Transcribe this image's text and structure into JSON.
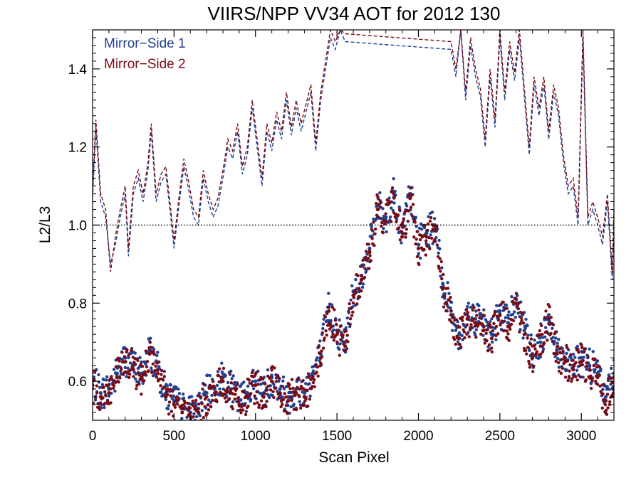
{
  "chart_data": {
    "type": "scatter",
    "title": "VIIRS/NPP VV34 AOT for 2012 130",
    "xlabel": "Scan Pixel",
    "ylabel": "L2/L3",
    "xlim": [
      0,
      3200
    ],
    "ylim": [
      0.5,
      1.5
    ],
    "x_ticks": [
      0,
      500,
      1000,
      1500,
      2000,
      2500,
      3000
    ],
    "x_tick_labels": [
      "0",
      "500",
      "1000",
      "1500",
      "2000",
      "2500",
      "3000"
    ],
    "y_ticks": [
      0.6,
      0.8,
      1.0,
      1.2,
      1.4
    ],
    "y_tick_labels": [
      "0.6",
      "0.8",
      "1.0",
      "1.2",
      "1.4"
    ],
    "reference_line": 1.0,
    "legend_position": "top-left",
    "series": [
      {
        "name": "Mirror−Side 1",
        "color": "#1f3f8f",
        "style": "points",
        "x": [
          0,
          50,
          100,
          150,
          200,
          250,
          300,
          350,
          400,
          450,
          500,
          550,
          600,
          650,
          700,
          750,
          800,
          850,
          900,
          950,
          1000,
          1050,
          1100,
          1150,
          1200,
          1250,
          1300,
          1350,
          1400,
          1450,
          1500,
          1550,
          1600,
          1650,
          1700,
          1750,
          1800,
          1850,
          1900,
          1950,
          2000,
          2050,
          2100,
          2150,
          2200,
          2250,
          2300,
          2350,
          2400,
          2450,
          2500,
          2550,
          2600,
          2650,
          2700,
          2750,
          2800,
          2850,
          2900,
          2950,
          3000,
          3050,
          3100,
          3150,
          3200
        ],
        "values": [
          0.6,
          0.57,
          0.58,
          0.62,
          0.66,
          0.64,
          0.62,
          0.68,
          0.63,
          0.57,
          0.55,
          0.53,
          0.52,
          0.53,
          0.57,
          0.58,
          0.61,
          0.58,
          0.55,
          0.57,
          0.6,
          0.57,
          0.61,
          0.58,
          0.56,
          0.58,
          0.57,
          0.62,
          0.67,
          0.79,
          0.73,
          0.7,
          0.83,
          0.87,
          0.94,
          1.05,
          1.02,
          1.08,
          0.98,
          1.08,
          0.95,
          0.98,
          1.0,
          0.85,
          0.78,
          0.72,
          0.77,
          0.76,
          0.74,
          0.72,
          0.78,
          0.75,
          0.81,
          0.73,
          0.67,
          0.7,
          0.77,
          0.68,
          0.66,
          0.64,
          0.66,
          0.64,
          0.62,
          0.56,
          0.62
        ]
      },
      {
        "name": "Mirror−Side 2",
        "color": "#7a0a14",
        "style": "points",
        "x": [
          0,
          50,
          100,
          150,
          200,
          250,
          300,
          350,
          400,
          450,
          500,
          550,
          600,
          650,
          700,
          750,
          800,
          850,
          900,
          950,
          1000,
          1050,
          1100,
          1150,
          1200,
          1250,
          1300,
          1350,
          1400,
          1450,
          1500,
          1550,
          1600,
          1650,
          1700,
          1750,
          1800,
          1850,
          1900,
          1950,
          2000,
          2050,
          2100,
          2150,
          2200,
          2250,
          2300,
          2350,
          2400,
          2450,
          2500,
          2550,
          2600,
          2650,
          2700,
          2750,
          2800,
          2850,
          2900,
          2950,
          3000,
          3050,
          3100,
          3150,
          3200
        ],
        "values": [
          0.59,
          0.56,
          0.57,
          0.61,
          0.65,
          0.63,
          0.61,
          0.67,
          0.62,
          0.56,
          0.54,
          0.52,
          0.51,
          0.52,
          0.56,
          0.57,
          0.6,
          0.57,
          0.54,
          0.56,
          0.59,
          0.56,
          0.6,
          0.57,
          0.55,
          0.57,
          0.56,
          0.61,
          0.66,
          0.78,
          0.72,
          0.69,
          0.82,
          0.86,
          0.93,
          1.04,
          1.01,
          1.07,
          0.97,
          1.07,
          0.94,
          0.97,
          0.99,
          0.84,
          0.77,
          0.71,
          0.76,
          0.75,
          0.73,
          0.71,
          0.77,
          0.74,
          0.8,
          0.72,
          0.66,
          0.69,
          0.76,
          0.67,
          0.65,
          0.63,
          0.65,
          0.63,
          0.61,
          0.55,
          0.61
        ]
      },
      {
        "name": "Mirror−Side 1",
        "color": "#1f3f8f",
        "style": "dashed",
        "x": [
          0,
          20,
          50,
          80,
          110,
          140,
          170,
          200,
          220,
          250,
          280,
          310,
          340,
          360,
          390,
          420,
          450,
          480,
          500,
          530,
          560,
          590,
          620,
          650,
          680,
          710,
          740,
          770,
          800,
          830,
          860,
          890,
          920,
          950,
          980,
          1010,
          1040,
          1070,
          1100,
          1130,
          1160,
          1190,
          1220,
          1250,
          1280,
          1310,
          1340,
          1370,
          1400,
          1430,
          1460,
          1490,
          1520,
          1550,
          2200,
          2230,
          2260,
          2290,
          2320,
          2350,
          2380,
          2410,
          2440,
          2470,
          2500,
          2530,
          2560,
          2590,
          2620,
          2650,
          2680,
          2710,
          2740,
          2770,
          2800,
          2830,
          2860,
          2890,
          2920,
          2950,
          2980,
          3010,
          3040,
          3070,
          3100,
          3130,
          3160,
          3190,
          3200
        ],
        "values": [
          1.07,
          1.25,
          1.06,
          1.02,
          0.9,
          0.95,
          1.02,
          1.08,
          0.92,
          1.08,
          1.12,
          1.06,
          1.14,
          1.24,
          1.06,
          1.11,
          1.13,
          1.02,
          0.94,
          1.05,
          1.15,
          1.09,
          1.02,
          1.0,
          1.12,
          1.06,
          1.02,
          1.05,
          1.12,
          1.2,
          1.17,
          1.24,
          1.13,
          1.18,
          1.3,
          1.2,
          1.1,
          1.24,
          1.19,
          1.27,
          1.22,
          1.32,
          1.23,
          1.3,
          1.24,
          1.29,
          1.34,
          1.19,
          1.32,
          1.4,
          1.48,
          1.45,
          1.5,
          1.47,
          1.45,
          1.38,
          1.5,
          1.32,
          1.46,
          1.38,
          1.33,
          1.2,
          1.38,
          1.25,
          1.48,
          1.32,
          1.45,
          1.37,
          1.48,
          1.33,
          1.18,
          1.36,
          1.28,
          1.36,
          1.22,
          1.34,
          1.28,
          1.16,
          1.08,
          1.1,
          1.0,
          1.48,
          1.0,
          1.04,
          1.0,
          0.95,
          1.06,
          0.86,
          1.02
        ]
      },
      {
        "name": "Mirror−Side 2",
        "color": "#7a0a14",
        "style": "dashed",
        "x": [
          0,
          20,
          50,
          80,
          110,
          140,
          170,
          200,
          220,
          250,
          280,
          310,
          340,
          360,
          390,
          420,
          450,
          480,
          500,
          530,
          560,
          590,
          620,
          650,
          680,
          710,
          740,
          770,
          800,
          830,
          860,
          890,
          920,
          950,
          980,
          1010,
          1040,
          1070,
          1100,
          1130,
          1160,
          1190,
          1220,
          1250,
          1280,
          1310,
          1340,
          1370,
          1400,
          1430,
          1460,
          1490,
          1520,
          1550,
          2200,
          2230,
          2260,
          2290,
          2320,
          2350,
          2380,
          2410,
          2440,
          2470,
          2500,
          2530,
          2560,
          2590,
          2620,
          2650,
          2680,
          2710,
          2740,
          2770,
          2800,
          2830,
          2860,
          2890,
          2920,
          2950,
          2980,
          3010,
          3040,
          3070,
          3100,
          3130,
          3160,
          3190,
          3200
        ],
        "values": [
          1.09,
          1.27,
          1.08,
          1.04,
          0.88,
          0.97,
          1.04,
          1.1,
          0.94,
          1.1,
          1.14,
          1.08,
          1.16,
          1.26,
          1.08,
          1.13,
          1.15,
          1.04,
          0.96,
          1.07,
          1.17,
          1.11,
          1.04,
          1.02,
          1.14,
          1.08,
          1.04,
          1.07,
          1.14,
          1.22,
          1.19,
          1.26,
          1.15,
          1.2,
          1.32,
          1.22,
          1.12,
          1.26,
          1.21,
          1.29,
          1.24,
          1.34,
          1.25,
          1.32,
          1.26,
          1.31,
          1.36,
          1.21,
          1.34,
          1.42,
          1.5,
          1.47,
          1.5,
          1.49,
          1.47,
          1.4,
          1.5,
          1.34,
          1.48,
          1.4,
          1.35,
          1.22,
          1.4,
          1.27,
          1.5,
          1.34,
          1.47,
          1.39,
          1.5,
          1.35,
          1.2,
          1.38,
          1.3,
          1.38,
          1.24,
          1.36,
          1.3,
          1.18,
          1.1,
          1.12,
          1.02,
          1.5,
          1.02,
          1.06,
          1.02,
          0.97,
          1.08,
          0.88,
          1.04
        ]
      }
    ]
  }
}
